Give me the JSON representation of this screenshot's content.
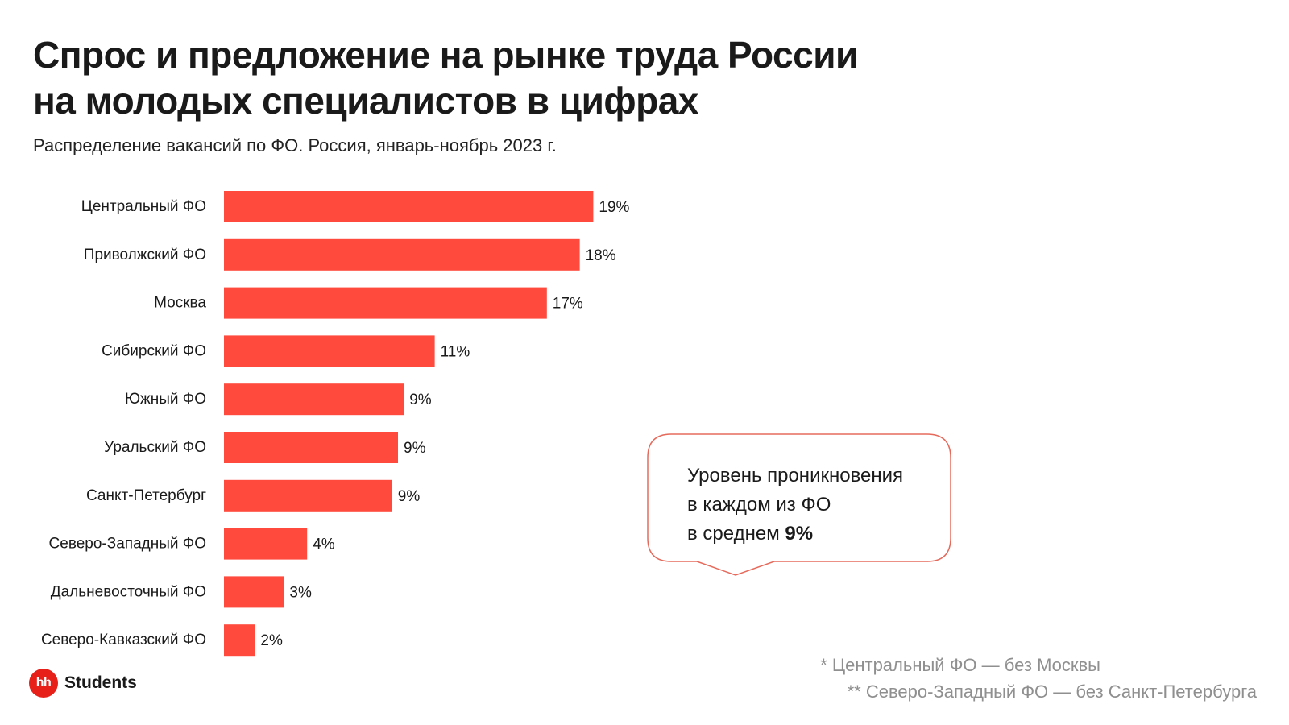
{
  "header": {
    "title_line1": "Спрос и предложение на рынке труда России",
    "title_line2": "на молодых специалистов в цифрах",
    "subtitle": "Распределение вакансий по ФО. Россия, январь-ноябрь 2023 г."
  },
  "chart_data": {
    "type": "bar",
    "orientation": "horizontal",
    "title": "Распределение вакансий по ФО. Россия, январь-ноябрь 2023 г.",
    "xlabel": "",
    "ylabel": "",
    "unit": "%",
    "categories": [
      "Центральный ФО",
      "Приволжский ФО",
      "Москва",
      "Сибирский ФО",
      "Южный ФО",
      "Уральский ФО",
      "Санкт-Петербург",
      "Северо-Западный ФО",
      "Дальневосточный ФО",
      "Северо-Кавказский ФО"
    ],
    "values": [
      19,
      18,
      17,
      11,
      9,
      9,
      9,
      4,
      3,
      2
    ],
    "bar_display": [
      19.1,
      18.4,
      16.7,
      10.9,
      9.3,
      9.0,
      8.7,
      4.3,
      3.1,
      1.6
    ],
    "value_labels": [
      "19%",
      "18%",
      "17%",
      "11%",
      "9%",
      "9%",
      "9%",
      "4%",
      "3%",
      "2%"
    ],
    "bar_color": "#ff4a3d",
    "grid": false,
    "legend": "none"
  },
  "callout": {
    "line1": "Уровень проникновения",
    "line2": "в каждом из ФО",
    "line3_prefix": "в среднем ",
    "line3_value": "9%",
    "border_color": "#e66a5c"
  },
  "footer": {
    "logo_mark": "hh",
    "logo_text": "Students",
    "logo_color": "#e8201a",
    "footnote1": "* Центральный ФО — без Москвы",
    "footnote2": "** Северо-Западный ФО — без Санкт-Петербурга"
  }
}
